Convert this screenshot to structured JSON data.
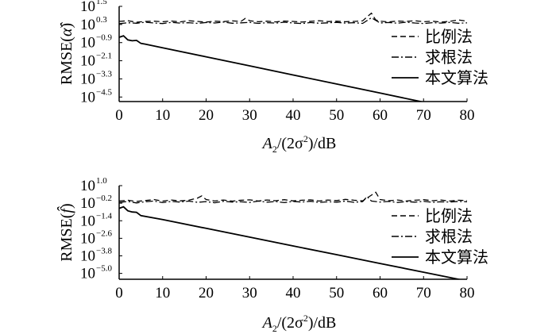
{
  "chart_data": [
    {
      "type": "line",
      "title": "",
      "ylabel": "RMSE(α̂)",
      "ylabel_parts": {
        "prefix": "RMSE(",
        "symbol": "α",
        "suffix": ")"
      },
      "xlabel": "A2/(2σ2)/dB",
      "xlabel_parts": {
        "a": "A",
        "a_sub": "2",
        "mid": "/(2σ",
        "sup": "2",
        "end": ")/dB"
      },
      "y_scale": "log10",
      "xlim": [
        0,
        80
      ],
      "ylim_exp": [
        -4.8,
        1.5
      ],
      "x_ticks": [
        "0",
        "10",
        "20",
        "30",
        "40",
        "50",
        "60",
        "70",
        "80"
      ],
      "y_ticks": [
        {
          "base": "10",
          "exp": "1.5",
          "value": 1.5
        },
        {
          "base": "10",
          "exp": "0.3",
          "value": 0.3
        },
        {
          "base": "10",
          "exp": "−0.9",
          "value": -0.9
        },
        {
          "base": "10",
          "exp": "−2.1",
          "value": -2.1
        },
        {
          "base": "10",
          "exp": "−3.3",
          "value": -3.3
        },
        {
          "base": "10",
          "exp": "−4.5",
          "value": -4.5
        }
      ],
      "legend_position": "lower-right",
      "series": [
        {
          "name": "比例法",
          "style": "dashed",
          "x": [
            0,
            2,
            4,
            6,
            8,
            10,
            12,
            14,
            16,
            18,
            20,
            22,
            24,
            26,
            28,
            29,
            30,
            32,
            34,
            36,
            38,
            40,
            42,
            44,
            46,
            48,
            50,
            52,
            54,
            56,
            57,
            58,
            59,
            60,
            62,
            64,
            66,
            68,
            70,
            72,
            74,
            76,
            78,
            80
          ],
          "log_y": [
            0.5,
            0.55,
            0.45,
            0.5,
            0.52,
            0.48,
            0.53,
            0.47,
            0.55,
            0.5,
            0.46,
            0.52,
            0.49,
            0.54,
            0.5,
            0.7,
            0.55,
            0.48,
            0.52,
            0.47,
            0.53,
            0.5,
            0.46,
            0.51,
            0.55,
            0.49,
            0.52,
            0.48,
            0.5,
            0.54,
            0.8,
            1.05,
            0.6,
            0.52,
            0.47,
            0.53,
            0.5,
            0.55,
            0.48,
            0.52,
            0.46,
            0.51,
            0.6,
            0.52
          ]
        },
        {
          "name": "求根法",
          "style": "dashdot",
          "x": [
            0,
            2,
            4,
            6,
            8,
            10,
            12,
            14,
            16,
            18,
            20,
            22,
            24,
            26,
            28,
            30,
            32,
            34,
            36,
            38,
            40,
            42,
            44,
            46,
            48,
            50,
            52,
            54,
            56,
            58,
            60,
            62,
            64,
            66,
            68,
            70,
            72,
            74,
            76,
            78,
            80
          ],
          "log_y": [
            0.35,
            0.42,
            0.38,
            0.45,
            0.4,
            0.36,
            0.44,
            0.39,
            0.42,
            0.37,
            0.43,
            0.4,
            0.46,
            0.38,
            0.41,
            0.44,
            0.37,
            0.42,
            0.39,
            0.45,
            0.4,
            0.36,
            0.43,
            0.38,
            0.41,
            0.44,
            0.39,
            0.42,
            0.37,
            0.75,
            0.4,
            0.43,
            0.38,
            0.45,
            0.4,
            0.36,
            0.42,
            0.39,
            0.44,
            0.38,
            0.41
          ]
        },
        {
          "name": "本文算法",
          "style": "solid",
          "x": [
            0,
            1,
            2,
            3,
            4,
            5,
            6,
            10,
            20,
            30,
            40,
            50,
            60,
            70,
            80
          ],
          "log_y": [
            -0.55,
            -0.45,
            -0.72,
            -0.78,
            -0.75,
            -0.95,
            -1.0,
            -1.24,
            -1.84,
            -2.44,
            -3.04,
            -3.64,
            -4.24,
            -4.84,
            -5.44
          ]
        }
      ]
    },
    {
      "type": "line",
      "title": "",
      "ylabel": "RMSE(f̂)",
      "ylabel_parts": {
        "prefix": "RMSE(",
        "symbol": "f",
        "suffix": ")"
      },
      "xlabel": "A2/(2σ2)/dB",
      "xlabel_parts": {
        "a": "A",
        "a_sub": "2",
        "mid": "/(2σ",
        "sup": "2",
        "end": ")/dB"
      },
      "y_scale": "log10",
      "xlim": [
        0,
        80
      ],
      "ylim_exp": [
        -5.4,
        1.0
      ],
      "x_ticks": [
        "0",
        "10",
        "20",
        "30",
        "40",
        "50",
        "60",
        "70",
        "80"
      ],
      "y_ticks": [
        {
          "base": "10",
          "exp": "1.0",
          "value": 1.0
        },
        {
          "base": "10",
          "exp": "−0.2",
          "value": -0.2
        },
        {
          "base": "10",
          "exp": "−1.4",
          "value": -1.4
        },
        {
          "base": "10",
          "exp": "−2.6",
          "value": -2.6
        },
        {
          "base": "10",
          "exp": "−3.8",
          "value": -3.8
        },
        {
          "base": "10",
          "exp": "−5.0",
          "value": -5.0
        }
      ],
      "legend_position": "lower-right",
      "series": [
        {
          "name": "比例法",
          "style": "dashed",
          "x": [
            0,
            2,
            4,
            6,
            8,
            10,
            12,
            14,
            16,
            18,
            19,
            20,
            22,
            24,
            26,
            28,
            30,
            32,
            34,
            36,
            38,
            40,
            42,
            44,
            46,
            48,
            50,
            52,
            54,
            56,
            58,
            59,
            60,
            62,
            64,
            66,
            68,
            70,
            72,
            74,
            76,
            78,
            80
          ],
          "log_y": [
            -0.05,
            0.0,
            -0.08,
            -0.02,
            0.05,
            -0.06,
            0.02,
            -0.04,
            0.0,
            0.15,
            0.3,
            0.05,
            -0.05,
            0.02,
            -0.06,
            0.0,
            0.03,
            -0.05,
            0.02,
            -0.03,
            0.04,
            -0.04,
            0.0,
            0.03,
            -0.05,
            0.02,
            -0.02,
            0.06,
            0.0,
            -0.04,
            0.35,
            0.55,
            0.05,
            -0.03,
            0.02,
            -0.05,
            0.0,
            0.04,
            -0.03,
            0.02,
            -0.05,
            0.0,
            -0.02
          ]
        },
        {
          "name": "求根法",
          "style": "dashdot",
          "x": [
            0,
            2,
            4,
            6,
            8,
            10,
            12,
            14,
            16,
            18,
            20,
            22,
            24,
            26,
            28,
            30,
            32,
            34,
            36,
            38,
            40,
            42,
            44,
            46,
            48,
            50,
            52,
            54,
            56,
            57,
            58,
            60,
            62,
            64,
            66,
            68,
            70,
            72,
            74,
            76,
            78,
            80
          ],
          "log_y": [
            -0.15,
            -0.08,
            -0.18,
            -0.1,
            -0.05,
            -0.16,
            -0.08,
            -0.12,
            -0.06,
            -0.14,
            -0.09,
            -0.17,
            -0.07,
            -0.12,
            -0.1,
            -0.15,
            -0.06,
            -0.13,
            -0.09,
            -0.16,
            -0.08,
            -0.12,
            -0.07,
            -0.15,
            -0.1,
            -0.13,
            -0.06,
            -0.14,
            -0.09,
            0.25,
            -0.05,
            -0.12,
            -0.08,
            -0.15,
            -0.09,
            -0.13,
            -0.07,
            -0.14,
            -0.1,
            -0.12,
            -0.08,
            -0.1
          ]
        },
        {
          "name": "本文算法",
          "style": "solid",
          "x": [
            0,
            1,
            2,
            3,
            4,
            5,
            10,
            20,
            30,
            40,
            50,
            60,
            70,
            80
          ],
          "log_y": [
            -0.55,
            -0.45,
            -0.72,
            -0.8,
            -0.82,
            -1.05,
            -1.32,
            -1.92,
            -2.52,
            -3.12,
            -3.72,
            -4.32,
            -4.92,
            -5.52
          ]
        }
      ]
    }
  ]
}
